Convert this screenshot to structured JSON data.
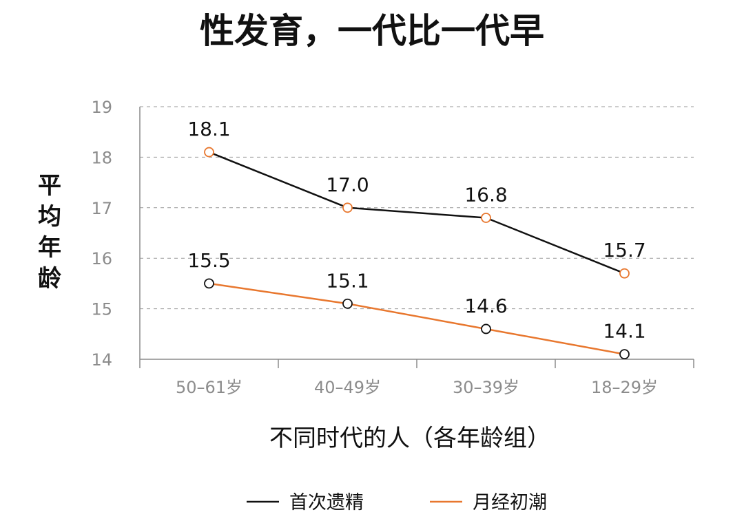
{
  "chart_data": {
    "type": "line",
    "title": "性发育，一代比一代早",
    "xlabel": "不同时代的人（各年龄组）",
    "ylabel": "平均年龄",
    "categories": [
      "50–61岁",
      "40–49岁",
      "30–39岁",
      "18–29岁"
    ],
    "ylim": [
      14,
      19
    ],
    "yticks": [
      14,
      15,
      16,
      17,
      18,
      19
    ],
    "grid": true,
    "legend_position": "bottom",
    "series": [
      {
        "name": "首次遗精",
        "values": [
          18.1,
          17.0,
          16.8,
          15.7
        ],
        "line_color": "#111111",
        "marker_color": "#e8772e"
      },
      {
        "name": "月经初潮",
        "values": [
          15.5,
          15.1,
          14.6,
          14.1
        ],
        "line_color": "#e8772e",
        "marker_color": "#111111"
      }
    ]
  }
}
